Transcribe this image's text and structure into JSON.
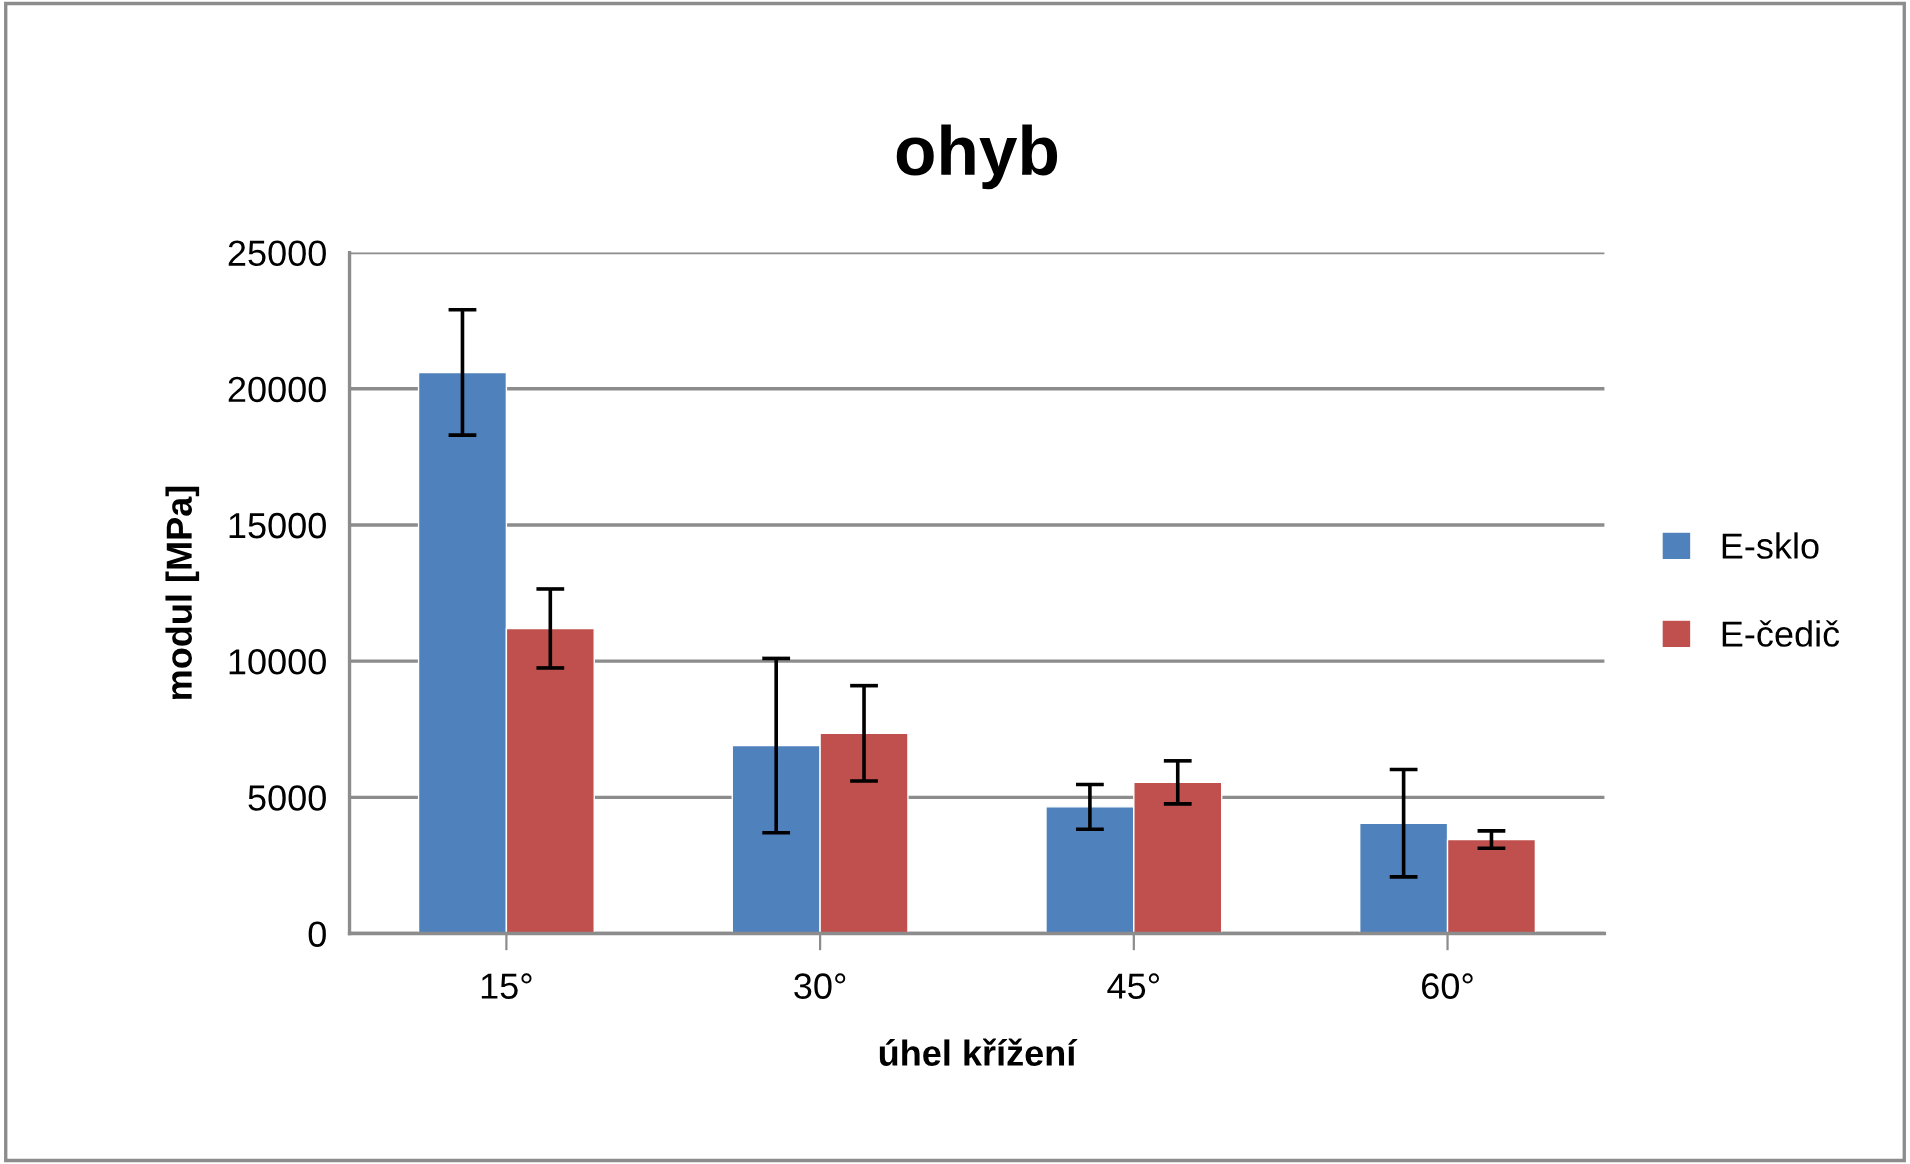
{
  "chart_data": {
    "type": "bar",
    "title": "ohyb",
    "xlabel": "úhel křížení",
    "ylabel": "modul [MPa]",
    "categories": [
      "15°",
      "30°",
      "45°",
      "60°"
    ],
    "series": [
      {
        "name": "E-sklo",
        "color": "#4f81bd",
        "values": [
          20600,
          6900,
          4650,
          4050
        ],
        "errors": [
          2300,
          3200,
          820,
          1970
        ]
      },
      {
        "name": "E-čedič",
        "color": "#c0504d",
        "values": [
          11200,
          7350,
          5550,
          3450
        ],
        "errors": [
          1450,
          1750,
          790,
          320
        ]
      }
    ],
    "ylim": [
      0,
      25000
    ],
    "yticks": [
      0,
      5000,
      10000,
      15000,
      20000,
      25000
    ],
    "grid": "y",
    "legend": "right"
  }
}
